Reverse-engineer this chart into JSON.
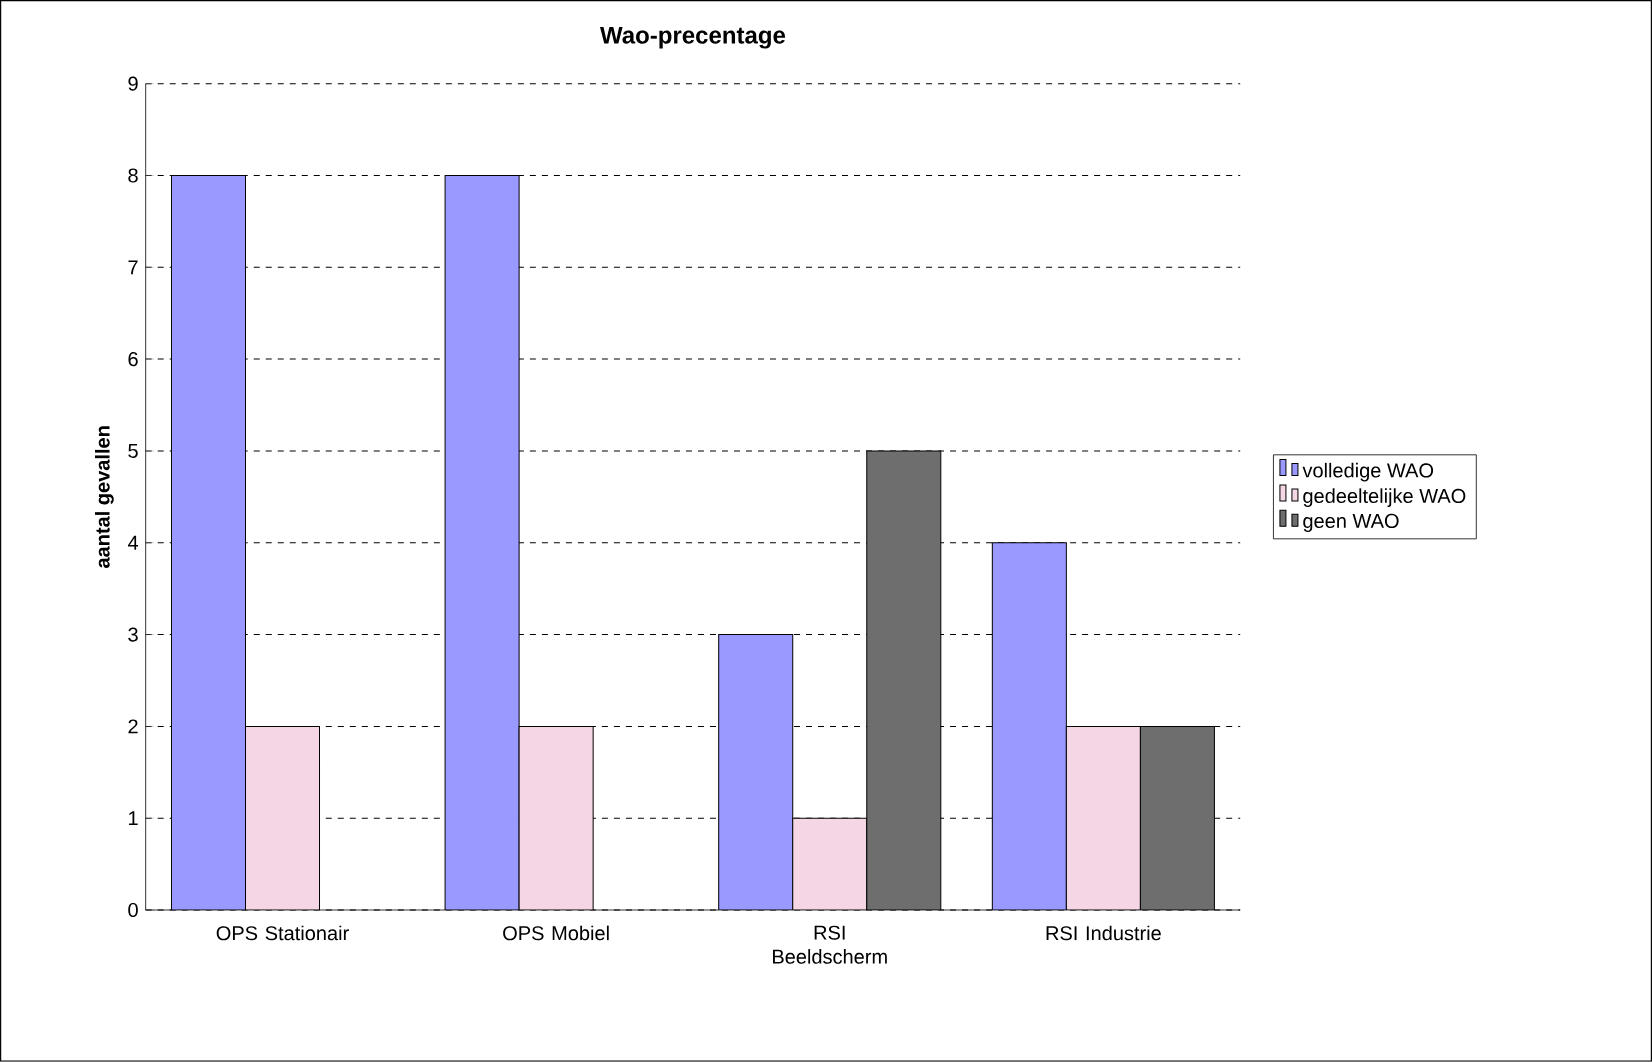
{
  "chart_data": {
    "type": "bar",
    "title": "Wao-precentage",
    "ylabel": "aantal gevallen",
    "categories": [
      "OPS Stationair",
      "OPS Mobiel",
      "RSI Beeldscherm",
      "RSI Industrie"
    ],
    "series": [
      {
        "name": "volledige WAO",
        "color": "#9999ff",
        "values": [
          8,
          8,
          3,
          4
        ]
      },
      {
        "name": "gedeeltelijke WAO",
        "color": "#f4d6e4",
        "values": [
          2,
          2,
          1,
          2
        ]
      },
      {
        "name": "geen WAO",
        "color": "#6e6e6e",
        "values": [
          null,
          null,
          5,
          2
        ]
      }
    ],
    "ylim": [
      0,
      9
    ],
    "yticks": [
      0,
      1,
      2,
      3,
      4,
      5,
      6,
      7,
      8,
      9
    ],
    "grid": "y",
    "legend": "right"
  }
}
